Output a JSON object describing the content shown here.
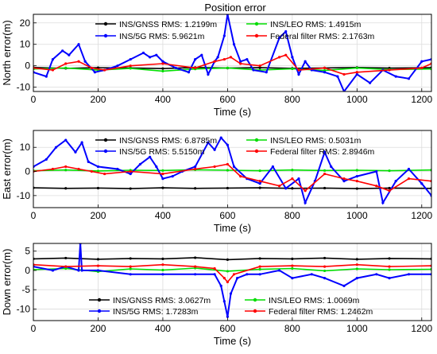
{
  "figure_title": "Position error",
  "xlabel": "Time (s)",
  "chart_data": [
    {
      "type": "line",
      "ylabel": "North error(m)",
      "xlim": [
        0,
        1230
      ],
      "ylim": [
        -12,
        24
      ],
      "xticks": [
        0,
        200,
        400,
        600,
        800,
        1000,
        1200
      ],
      "yticks": [
        -10,
        0,
        10,
        20
      ],
      "legend_position": "top",
      "series": [
        {
          "name": "INS/GNSS RMS:  1.2199m",
          "color": "#000000",
          "x": [
            0,
            100,
            200,
            300,
            400,
            500,
            600,
            700,
            800,
            900,
            1000,
            1100,
            1230
          ],
          "y": [
            -0.8,
            -1.2,
            -0.9,
            -1.0,
            -1.3,
            -0.8,
            -1.1,
            -0.9,
            -1.2,
            -1.0,
            -0.8,
            -1.1,
            -0.9
          ]
        },
        {
          "name": "INS/LEO RMS:  1.4915m",
          "color": "#00dd00",
          "x": [
            0,
            100,
            200,
            300,
            400,
            500,
            600,
            700,
            800,
            900,
            1000,
            1100,
            1230
          ],
          "y": [
            -1.5,
            -1.0,
            -2.0,
            -1.2,
            -2.5,
            -1.5,
            -1.0,
            -2.0,
            -1.4,
            -2.2,
            -1.0,
            -1.8,
            -1.5
          ]
        },
        {
          "name": "INS/5G RMS:  5.9621m",
          "color": "#0000ff",
          "x": [
            0,
            40,
            60,
            90,
            110,
            140,
            160,
            190,
            220,
            260,
            300,
            340,
            360,
            380,
            400,
            440,
            480,
            500,
            520,
            540,
            560,
            570,
            590,
            600,
            620,
            640,
            660,
            680,
            720,
            760,
            780,
            800,
            820,
            840,
            860,
            900,
            940,
            960,
            1000,
            1040,
            1080,
            1120,
            1160,
            1200,
            1230
          ],
          "y": [
            -3,
            -5,
            3,
            7,
            5,
            10,
            2,
            -3,
            -2,
            0,
            3,
            6,
            4,
            5,
            2,
            -1,
            -3,
            3,
            5,
            -4,
            2,
            4,
            14,
            24,
            10,
            2,
            3,
            -2,
            -3,
            13,
            16,
            4,
            -4,
            2,
            -2,
            -3,
            -5,
            -12,
            -4,
            -8,
            -2,
            -5,
            -6,
            2,
            3
          ]
        },
        {
          "name": "Federal filter RMS:  2.1763m",
          "color": "#ff0000",
          "x": [
            0,
            60,
            100,
            140,
            180,
            220,
            300,
            400,
            500,
            560,
            590,
            610,
            640,
            700,
            760,
            780,
            820,
            900,
            960,
            1000,
            1100,
            1200,
            1230
          ],
          "y": [
            -1,
            -2,
            1,
            2,
            -1,
            -2,
            0,
            1,
            -1,
            2,
            3,
            4,
            1,
            0,
            4,
            5,
            -2,
            -1,
            -4,
            -3,
            -2,
            -1,
            1
          ]
        }
      ]
    },
    {
      "type": "line",
      "ylabel": "East error(m)",
      "xlim": [
        0,
        1230
      ],
      "ylim": [
        -15,
        17
      ],
      "xticks": [
        0,
        200,
        400,
        600,
        800,
        1000,
        1200
      ],
      "yticks": [
        -10,
        0,
        10
      ],
      "legend_position": "top",
      "series": [
        {
          "name": "INS/GNSS RMS:  6.8785m",
          "color": "#000000",
          "x": [
            0,
            100,
            200,
            300,
            400,
            500,
            600,
            700,
            800,
            900,
            1000,
            1100,
            1230
          ],
          "y": [
            -6.8,
            -7.0,
            -6.9,
            -7.1,
            -6.8,
            -7.0,
            -6.9,
            -6.8,
            -7.0,
            -6.9,
            -7.1,
            -6.9,
            -7.0
          ]
        },
        {
          "name": "INS/LEO RMS:  0.5031m",
          "color": "#00dd00",
          "x": [
            0,
            100,
            200,
            300,
            400,
            500,
            600,
            700,
            800,
            900,
            1000,
            1100,
            1230
          ],
          "y": [
            0.3,
            0.6,
            0.2,
            0.5,
            0.4,
            0.7,
            0.5,
            0.3,
            0.6,
            0.4,
            0.5,
            0.3,
            0.6
          ]
        },
        {
          "name": "INS/5G RMS:  5.5150m",
          "color": "#0000ff",
          "x": [
            0,
            40,
            70,
            100,
            130,
            150,
            170,
            200,
            260,
            300,
            330,
            360,
            380,
            400,
            430,
            460,
            500,
            540,
            560,
            580,
            600,
            620,
            660,
            700,
            740,
            780,
            820,
            840,
            870,
            900,
            920,
            960,
            1000,
            1060,
            1080,
            1120,
            1160,
            1200,
            1230
          ],
          "y": [
            2,
            5,
            10,
            13,
            8,
            12,
            4,
            2,
            1,
            -1,
            3,
            6,
            2,
            -3,
            -2,
            0,
            2,
            12,
            9,
            14,
            11,
            2,
            -3,
            -5,
            2,
            -7,
            -3,
            -13,
            -4,
            8,
            2,
            -4,
            -2,
            0,
            -13,
            -4,
            1,
            -5,
            -10
          ]
        },
        {
          "name": "Federal filter RMS:  2.8946m",
          "color": "#ff0000",
          "x": [
            0,
            60,
            100,
            140,
            180,
            220,
            300,
            400,
            500,
            560,
            600,
            640,
            700,
            760,
            800,
            840,
            900,
            960,
            1000,
            1060,
            1100,
            1160,
            1230
          ],
          "y": [
            0,
            1,
            2,
            1,
            0,
            -1,
            0,
            -1,
            1,
            2,
            3,
            -2,
            -4,
            -6,
            -3,
            -8,
            -1,
            -3,
            -4,
            -6,
            -8,
            -3,
            -4
          ]
        }
      ]
    },
    {
      "type": "line",
      "ylabel": "Down error(m)",
      "xlim": [
        0,
        1230
      ],
      "ylim": [
        -13,
        7
      ],
      "xticks": [
        0,
        200,
        400,
        600,
        800,
        1000,
        1200
      ],
      "yticks": [
        -10,
        -5,
        0,
        5
      ],
      "legend_position": "bottom",
      "series": [
        {
          "name": "INS/GNSS RMS:  3.0627m",
          "color": "#000000",
          "x": [
            0,
            100,
            200,
            300,
            400,
            500,
            600,
            700,
            800,
            900,
            1000,
            1100,
            1230
          ],
          "y": [
            3.0,
            3.2,
            2.9,
            3.1,
            3.0,
            3.3,
            2.8,
            3.1,
            3.0,
            3.2,
            2.9,
            3.1,
            3.0
          ]
        },
        {
          "name": "INS/LEO RMS:  1.0069m",
          "color": "#00dd00",
          "x": [
            0,
            100,
            200,
            300,
            400,
            500,
            600,
            700,
            800,
            900,
            1000,
            1100,
            1230
          ],
          "y": [
            0.2,
            0.5,
            -0.3,
            0.4,
            0.1,
            0.6,
            -0.2,
            0.3,
            0.5,
            -0.1,
            0.4,
            0.2,
            0.3
          ]
        },
        {
          "name": "INS/5G RMS:  1.7283m",
          "color": "#0000ff",
          "x": [
            0,
            60,
            100,
            140,
            145,
            150,
            200,
            300,
            400,
            500,
            560,
            580,
            590,
            600,
            610,
            630,
            660,
            700,
            760,
            800,
            860,
            900,
            960,
            1000,
            1060,
            1100,
            1160,
            1230
          ],
          "y": [
            1,
            0,
            1,
            0,
            7,
            0,
            0,
            -1,
            -1,
            -1,
            -1,
            -4,
            -8,
            -12,
            -6,
            -2,
            -1,
            -1,
            0,
            -2,
            -1,
            -2,
            -4,
            -2,
            -1,
            -2,
            -1,
            -1
          ]
        },
        {
          "name": "Federal filter RMS:  1.2462m",
          "color": "#ff0000",
          "x": [
            0,
            100,
            200,
            300,
            400,
            500,
            560,
            590,
            600,
            620,
            700,
            800,
            900,
            1000,
            1100,
            1230
          ],
          "y": [
            1.5,
            1,
            1.2,
            1,
            1.5,
            1,
            0.5,
            -2,
            -3,
            -1,
            1,
            1.2,
            1,
            1.5,
            1,
            1.2
          ]
        }
      ]
    }
  ]
}
